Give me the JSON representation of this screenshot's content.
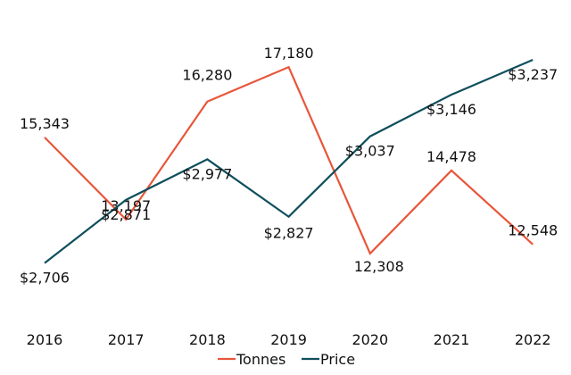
{
  "chart_data": {
    "type": "line",
    "title": "",
    "xlabel": "",
    "ylabel": "",
    "categories": [
      "2016",
      "2017",
      "2018",
      "2019",
      "2020",
      "2021",
      "2022"
    ],
    "grid": false,
    "legend_position": "bottom",
    "series": [
      {
        "name": "Tonnes",
        "color": "#e8563a",
        "values": [
          15343,
          13197,
          16280,
          17180,
          12308,
          14478,
          12548
        ],
        "labels": [
          "15,343",
          "13,197",
          "16,280",
          "17,180",
          "12,308",
          "14,478",
          "12,548"
        ],
        "ylim": [
          11000,
          18000
        ]
      },
      {
        "name": "Price",
        "color": "#0f4f5c",
        "values": [
          2706,
          2871,
          2977,
          2827,
          3037,
          3146,
          3237
        ],
        "labels": [
          "$2,706",
          "$2,871",
          "$2,977",
          "$2,827",
          "$3,037",
          "$3,146",
          "$3,237"
        ],
        "ylim": [
          2600,
          3300
        ]
      }
    ]
  }
}
